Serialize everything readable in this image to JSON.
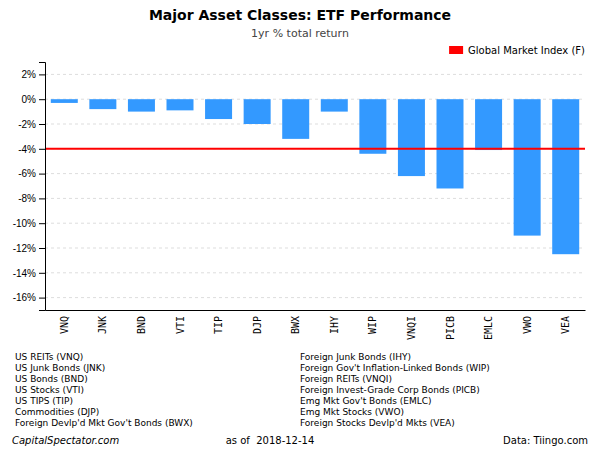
{
  "chart_data": {
    "type": "bar",
    "title": "Major Asset Classes: ETF Performance",
    "subtitle": "1yr % total return",
    "categories": [
      "VNQ",
      "JNK",
      "BND",
      "VTI",
      "TIP",
      "DJP",
      "BWX",
      "IHY",
      "WIP",
      "VNQI",
      "PICB",
      "EMLC",
      "VWO",
      "VEA"
    ],
    "values": [
      -0.3,
      -0.8,
      -1.0,
      -0.9,
      -1.6,
      -2.0,
      -3.2,
      -1.0,
      -4.4,
      -6.2,
      -7.2,
      -4.1,
      -11.0,
      -12.5
    ],
    "color": "#3399FF",
    "reference_line": {
      "name": "Global Market Index (F)",
      "value": -4.0,
      "color": "#FF0000"
    },
    "ylim": [
      -17,
      3
    ],
    "yticks": [
      {
        "value": 2,
        "label": "2%"
      },
      {
        "value": 0,
        "label": "0%"
      },
      {
        "value": -2,
        "label": "-2%"
      },
      {
        "value": -4,
        "label": "-4%"
      },
      {
        "value": -6,
        "label": "-6%"
      },
      {
        "value": -8,
        "label": "-8%"
      },
      {
        "value": -10,
        "label": "-10%"
      },
      {
        "value": -12,
        "label": "-12%"
      },
      {
        "value": -14,
        "label": "-14%"
      },
      {
        "value": -16,
        "label": "-16%"
      }
    ],
    "grid": true,
    "legend": "upper right",
    "annotations_left": [
      "US REITs (VNQ)",
      "US Junk Bonds (JNK)",
      "US Bonds (BND)",
      "US Stocks (VTI)",
      "US TIPS (TIP)",
      "Commodities (DJP)",
      "Foreign Devlp'd Mkt Gov't Bonds (BWX)"
    ],
    "annotations_right": [
      "Foreign Junk Bonds (IHY)",
      "Foreign Gov't Inflation-Linked Bonds (WIP)",
      "Foreign REITs (VNQI)",
      "Foreign Invest-Grade Corp Bonds (PICB)",
      "Emg Mkt Gov't Bonds (EMLC)",
      "Emg Mkt Stocks (VWO)",
      "Foreign Stocks Devlp'd Mkts (VEA)"
    ],
    "footer": [
      "CapitalSpectator.com",
      "as of  2018-12-14",
      "Data: Tiingo.com"
    ]
  }
}
